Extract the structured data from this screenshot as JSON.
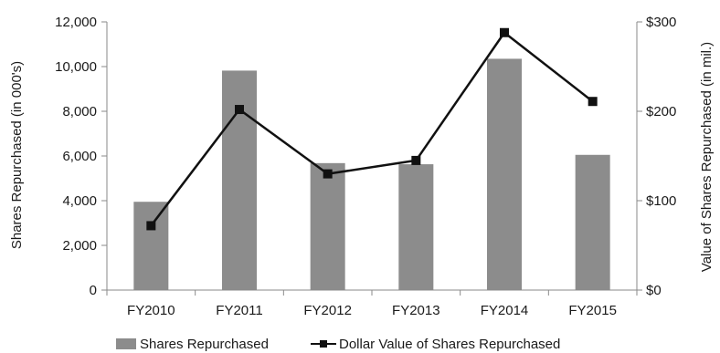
{
  "chart_data": {
    "type": "bar",
    "categories": [
      "FY2010",
      "FY2011",
      "FY2012",
      "FY2013",
      "FY2014",
      "FY2015"
    ],
    "series": [
      {
        "name": "Shares Repurchased",
        "type": "bar",
        "axis": "left",
        "values": [
          3950,
          9820,
          5680,
          5630,
          10350,
          6050
        ],
        "color": "#8c8c8c"
      },
      {
        "name": "Dollar Value of Shares Repurchased",
        "type": "line",
        "axis": "right",
        "values": [
          72,
          202,
          130,
          145,
          288,
          211
        ],
        "color": "#111111",
        "marker": "square"
      }
    ],
    "ylabel": "Shares Repurchased  (in 000's)",
    "y2label": "Value of Shares Repurchased  (in mil.)",
    "ylim": [
      0,
      12000
    ],
    "yticks": [
      0,
      2000,
      4000,
      6000,
      8000,
      10000,
      12000
    ],
    "ytick_labels": [
      "0",
      "2,000",
      "4,000",
      "6,000",
      "8,000",
      "10,000",
      "12,000"
    ],
    "y2lim": [
      0,
      300
    ],
    "y2ticks": [
      0,
      100,
      200,
      300
    ],
    "y2tick_labels": [
      "$0",
      "$100",
      "$200",
      "$300"
    ],
    "grid": false,
    "legend": "bottom"
  }
}
